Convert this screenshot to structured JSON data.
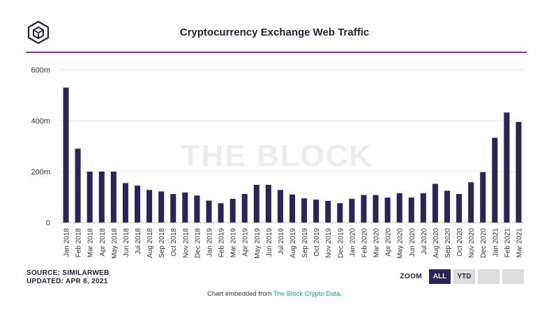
{
  "header": {
    "title": "Cryptocurrency Exchange Web Traffic"
  },
  "watermark": "THE BLOCK",
  "footer": {
    "source": "SOURCE: SIMILARWEB",
    "updated": "UPDATED: APR 8, 2021"
  },
  "zoom": {
    "label": "ZOOM",
    "buttons": [
      "ALL",
      "YTD",
      "",
      ""
    ],
    "active": "ALL"
  },
  "embed": {
    "prefix": "Chart embedded from ",
    "link": "The Block Crypto Data",
    "suffix": "."
  },
  "colors": {
    "bar": "#2a2458",
    "accent": "#8e2ea8",
    "link": "#1a9a8a"
  },
  "chart_data": {
    "type": "bar",
    "title": "Cryptocurrency Exchange Web Traffic",
    "xlabel": "",
    "ylabel": "",
    "ylim": [
      0,
      600
    ],
    "yticks": [
      {
        "value": 0,
        "label": "0"
      },
      {
        "value": 200,
        "label": "200m"
      },
      {
        "value": 400,
        "label": "400m"
      },
      {
        "value": 600,
        "label": "600m"
      }
    ],
    "grid": true,
    "categories": [
      "Jan 2018",
      "Feb 2018",
      "Mar 2018",
      "Apr 2018",
      "May 2018",
      "Jun 2018",
      "Jul 2018",
      "Aug 2018",
      "Sep 2018",
      "Oct 2018",
      "Nov 2018",
      "Dec 2018",
      "Jan 2019",
      "Feb 2019",
      "Mar 2019",
      "Apr 2019",
      "May 2019",
      "Jun 2019",
      "Jul 2019",
      "Aug 2019",
      "Sep 2019",
      "Oct 2019",
      "Nov 2019",
      "Dec 2019",
      "Jan 2020",
      "Feb 2020",
      "Mar 2020",
      "Apr 2020",
      "May 2020",
      "Jun 2020",
      "Jul 2020",
      "Aug 2020",
      "Sep 2020",
      "Oct 2020",
      "Nov 2020",
      "Dec 2020",
      "Jan 2021",
      "Feb 2021",
      "Mar 2021"
    ],
    "values": [
      530,
      290,
      200,
      200,
      200,
      155,
      145,
      128,
      122,
      112,
      118,
      106,
      86,
      76,
      93,
      112,
      148,
      148,
      128,
      110,
      95,
      90,
      85,
      76,
      93,
      108,
      108,
      98,
      115,
      98,
      115,
      152,
      125,
      112,
      158,
      198,
      333,
      432,
      395
    ],
    "unit": "m"
  }
}
